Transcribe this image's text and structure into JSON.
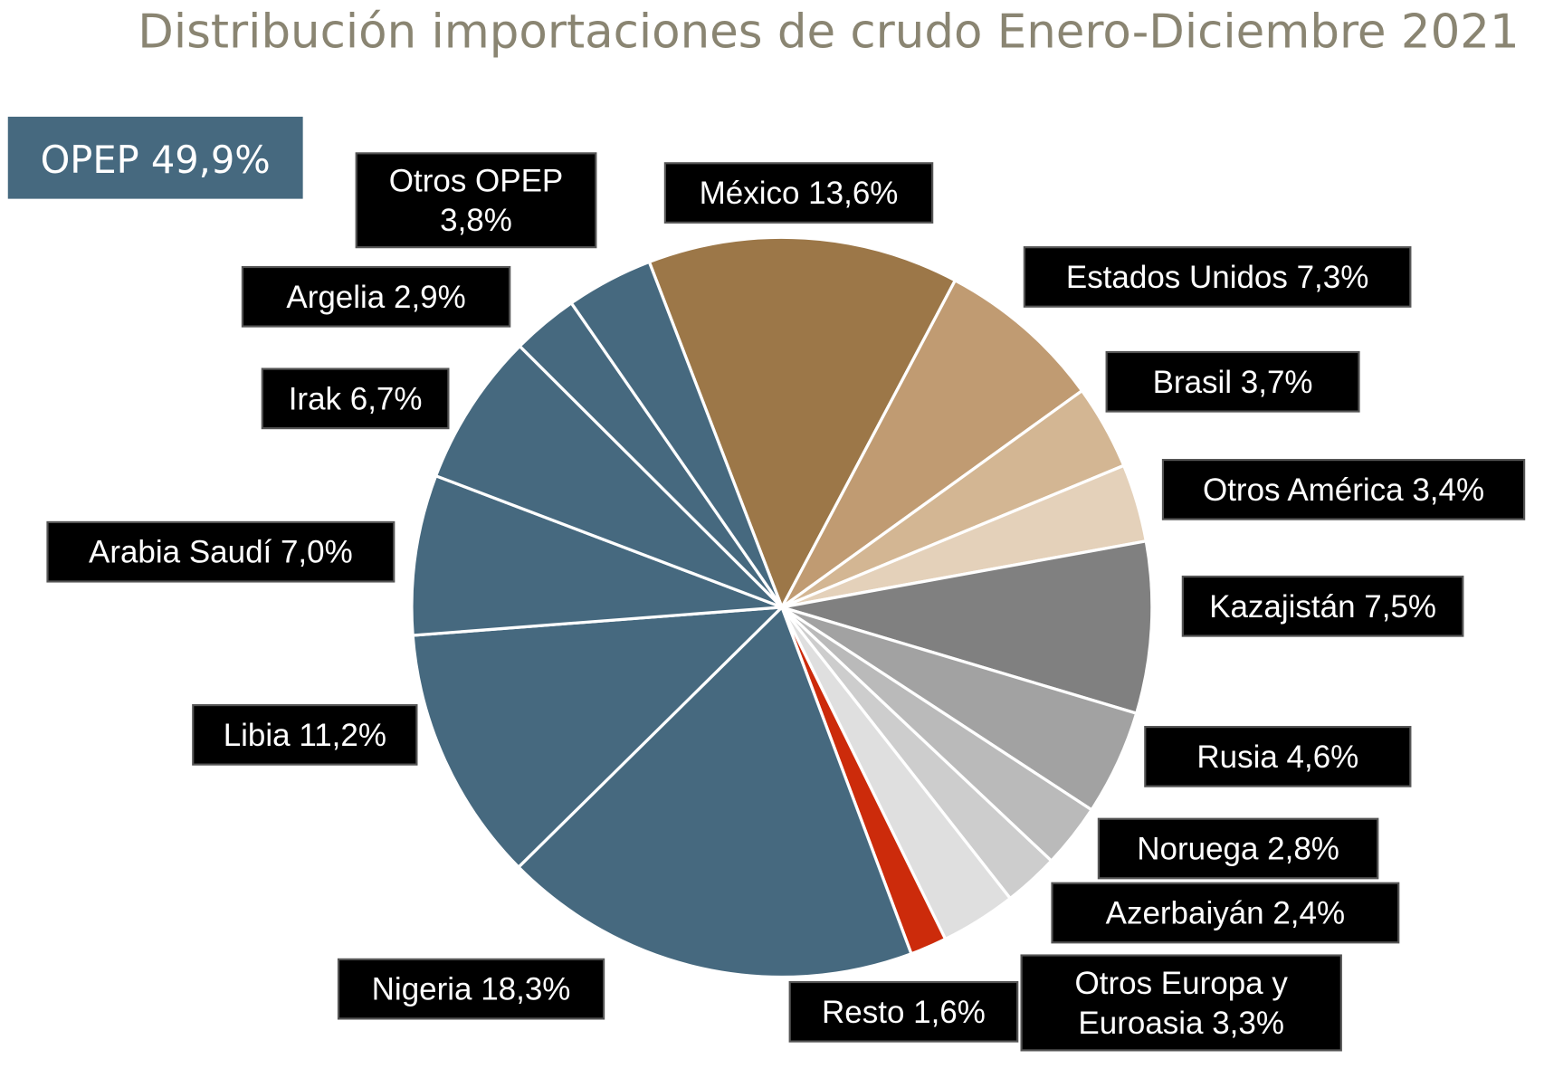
{
  "chart_data": {
    "type": "pie",
    "title": "Distribución importaciones de crudo Enero-Diciembre 2021",
    "group_annotation": {
      "label": "OPEP 49,9%",
      "color": "#46697f"
    },
    "slices": [
      {
        "name": "México",
        "value": 13.6,
        "label": "México 13,6%",
        "color": "#9c7748"
      },
      {
        "name": "Estados Unidos",
        "value": 7.3,
        "label": "Estados Unidos 7,3%",
        "color": "#c09b72"
      },
      {
        "name": "Brasil",
        "value": 3.7,
        "label": "Brasil 3,7%",
        "color": "#d3b693"
      },
      {
        "name": "Otros América",
        "value": 3.4,
        "label": "Otros América 3,4%",
        "color": "#e4d1ba"
      },
      {
        "name": "Kazajistán",
        "value": 7.5,
        "label": "Kazajistán 7,5%",
        "color": "#808080"
      },
      {
        "name": "Rusia",
        "value": 4.6,
        "label": "Rusia 4,6%",
        "color": "#a2a2a2"
      },
      {
        "name": "Noruega",
        "value": 2.8,
        "label": "Noruega 2,8%",
        "color": "#bababa"
      },
      {
        "name": "Azerbaiyán",
        "value": 2.4,
        "label": "Azerbaiyán 2,4%",
        "color": "#cdcdcd"
      },
      {
        "name": "Otros Europa y Euroasia",
        "value": 3.3,
        "label": [
          "Otros Europa y",
          "Euroasia 3,3%"
        ],
        "color": "#dfdfdf"
      },
      {
        "name": "Resto",
        "value": 1.6,
        "label": "Resto 1,6%",
        "color": "#cc2b0b"
      },
      {
        "name": "Nigeria",
        "value": 18.3,
        "label": "Nigeria 18,3%",
        "color": "#46697f"
      },
      {
        "name": "Libia",
        "value": 11.2,
        "label": "Libia 11,2%",
        "color": "#46697f"
      },
      {
        "name": "Arabia Saudí",
        "value": 7.0,
        "label": "Arabia Saudí 7,0%",
        "color": "#46697f"
      },
      {
        "name": "Irak",
        "value": 6.7,
        "label": "Irak 6,7%",
        "color": "#46697f"
      },
      {
        "name": "Argelia",
        "value": 2.9,
        "label": "Argelia 2,9%",
        "color": "#46697f"
      },
      {
        "name": "Otros OPEP",
        "value": 3.8,
        "label": [
          "Otros OPEP",
          "3,8%"
        ],
        "color": "#46697f"
      }
    ]
  }
}
